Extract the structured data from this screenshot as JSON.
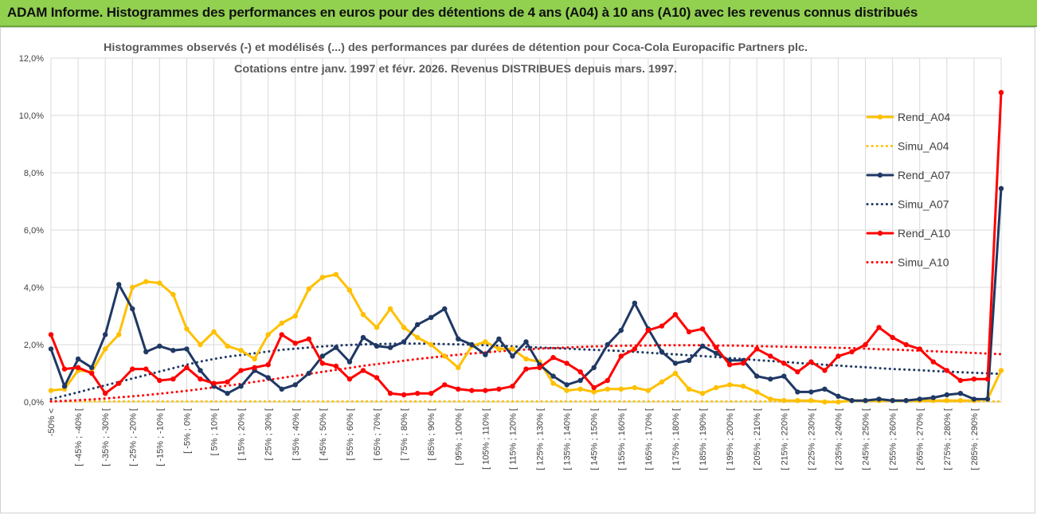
{
  "banner": {
    "title": "ADAM Informe. Histogrammes des performances en euros pour des détentions de 4 ans (A04) à 10 ans (A10) avec les revenus connus distribués"
  },
  "chart_data": {
    "type": "line",
    "title_line1": "Histogrammes observés (-) et modélisés (...) des performances par durées de détention pour Coca-Cola Europacific Partners plc.",
    "title_line2": "Cotations entre janv. 1997 et févr. 2026. Revenus DISTRIBUES depuis mars. 1997.",
    "ylim": [
      0,
      12
    ],
    "yticks": [
      "0,0%",
      "2,0%",
      "4,0%",
      "6,0%",
      "8,0%",
      "10,0%",
      "12,0%"
    ],
    "ytick_values": [
      0,
      2,
      4,
      6,
      8,
      10,
      12
    ],
    "xlabel": "",
    "ylabel": "",
    "legend_position": "right",
    "x_tick_labels": [
      "-50% <",
      "[ -45% ; -40% [",
      "[ -35% ; -30% [",
      "[ -25% ; -20% [",
      "[ -15% ; -10% [",
      "[ -5% ; 0% [",
      "[ 5% ; 10% [",
      "[ 15% ; 20% [",
      "[ 25% ; 30% [",
      "[ 35% ; 40% [",
      "[ 45% ; 50% [",
      "[ 55% ; 60% [",
      "[ 65% ; 70% [",
      "[ 75% ; 80% [",
      "[ 85% ; 90% [",
      "[ 95% ; 100% [",
      "[ 105% ; 110% [",
      "[ 115% ; 120% [",
      "[ 125% ; 130% [",
      "[ 135% ; 140% [",
      "[ 145% ; 150% [",
      "[ 155% ; 160% [",
      "[ 165% ; 170% [",
      "[ 175% ; 180% [",
      "[ 185% ; 190% [",
      "[ 195% ; 200% [",
      "[ 205% ; 210% [",
      "[ 215% ; 220% [",
      "[ 225% ; 230% [",
      "[ 235% ; 240% [",
      "[ 245% ; 250% [",
      "[ 255% ; 260% [",
      "[ 265% ; 270% [",
      "[ 275% ; 280% [",
      "[ 285% ; 290% ["
    ],
    "series": [
      {
        "name": "Rend_A04",
        "color": "#ffc000",
        "style": "solid",
        "markers": true,
        "values": [
          0.4,
          0.45,
          1.1,
          1.05,
          1.85,
          2.35,
          4.0,
          4.2,
          4.15,
          3.75,
          2.55,
          2.0,
          2.45,
          1.95,
          1.8,
          1.5,
          2.35,
          2.75,
          3.0,
          3.95,
          4.35,
          4.45,
          3.9,
          3.05,
          2.6,
          3.25,
          2.6,
          2.25,
          2.0,
          1.6,
          1.2,
          1.95,
          2.1,
          1.85,
          1.85,
          1.5,
          1.4,
          0.65,
          0.4,
          0.45,
          0.35,
          0.45,
          0.45,
          0.5,
          0.4,
          0.7,
          1.0,
          0.45,
          0.3,
          0.5,
          0.6,
          0.55,
          0.35,
          0.1,
          0.05,
          0.05,
          0.05,
          0.0,
          0.0,
          0.05,
          0.05,
          0.05,
          0.05,
          0.05,
          0.05,
          0.05,
          0.05,
          0.05,
          0.05,
          0.1,
          1.1
        ]
      },
      {
        "name": "Simu_A04",
        "color": "#ffc000",
        "style": "dotted",
        "markers": false,
        "values": [
          0.02,
          0.02,
          0.02,
          0.02,
          0.02,
          0.02,
          0.02,
          0.02,
          0.02,
          0.02,
          0.02,
          0.02,
          0.02,
          0.02,
          0.02,
          0.02,
          0.02,
          0.02,
          0.02,
          0.02,
          0.02,
          0.02,
          0.02,
          0.02,
          0.02,
          0.02,
          0.02,
          0.02,
          0.02,
          0.02,
          0.02,
          0.02,
          0.02,
          0.02,
          0.02,
          0.02,
          0.02,
          0.02,
          0.02,
          0.02,
          0.02,
          0.02,
          0.02,
          0.02,
          0.02,
          0.02,
          0.02,
          0.02,
          0.02,
          0.02,
          0.02,
          0.02,
          0.02,
          0.02,
          0.02,
          0.02,
          0.02,
          0.02,
          0.02,
          0.02,
          0.02,
          0.02,
          0.02,
          0.02,
          0.02,
          0.02,
          0.02,
          0.02,
          0.02,
          0.02,
          0.02
        ]
      },
      {
        "name": "Rend_A07",
        "color": "#1f3864",
        "style": "solid",
        "markers": true,
        "values": [
          1.85,
          0.55,
          1.5,
          1.2,
          2.35,
          4.1,
          3.25,
          1.75,
          1.95,
          1.8,
          1.85,
          1.1,
          0.55,
          0.3,
          0.55,
          1.1,
          0.85,
          0.45,
          0.6,
          1.0,
          1.6,
          1.9,
          1.4,
          2.25,
          1.95,
          1.9,
          2.1,
          2.7,
          2.95,
          3.25,
          2.2,
          2.0,
          1.65,
          2.2,
          1.6,
          2.1,
          1.3,
          0.9,
          0.6,
          0.75,
          1.2,
          2.0,
          2.5,
          3.45,
          2.55,
          1.75,
          1.35,
          1.45,
          1.95,
          1.7,
          1.45,
          1.45,
          0.9,
          0.8,
          0.9,
          0.35,
          0.35,
          0.45,
          0.2,
          0.05,
          0.05,
          0.1,
          0.05,
          0.05,
          0.1,
          0.15,
          0.25,
          0.3,
          0.1,
          0.1,
          7.45
        ]
      },
      {
        "name": "Simu_A07",
        "color": "#1f3864",
        "style": "dotted",
        "markers": false,
        "values": [
          0.1,
          0.22,
          0.34,
          0.46,
          0.58,
          0.7,
          0.82,
          0.94,
          1.06,
          1.18,
          1.3,
          1.41,
          1.5,
          1.58,
          1.64,
          1.7,
          1.76,
          1.82,
          1.86,
          1.9,
          1.94,
          1.97,
          1.99,
          2.01,
          2.02,
          2.03,
          2.04,
          2.04,
          2.03,
          2.02,
          2.01,
          2.0,
          1.98,
          1.96,
          1.94,
          1.92,
          1.9,
          1.88,
          1.86,
          1.84,
          1.82,
          1.8,
          1.78,
          1.75,
          1.72,
          1.69,
          1.66,
          1.63,
          1.6,
          1.57,
          1.53,
          1.5,
          1.46,
          1.43,
          1.4,
          1.36,
          1.33,
          1.3,
          1.27,
          1.24,
          1.21,
          1.18,
          1.15,
          1.13,
          1.11,
          1.08,
          1.06,
          1.04,
          1.02,
          1.0,
          0.98
        ]
      },
      {
        "name": "Rend_A10",
        "color": "#ff0000",
        "style": "solid",
        "markers": true,
        "values": [
          2.35,
          1.15,
          1.2,
          1.0,
          0.3,
          0.65,
          1.15,
          1.15,
          0.75,
          0.8,
          1.2,
          0.8,
          0.65,
          0.7,
          1.1,
          1.2,
          1.3,
          2.35,
          2.05,
          2.2,
          1.35,
          1.25,
          0.8,
          1.1,
          0.85,
          0.3,
          0.25,
          0.3,
          0.3,
          0.6,
          0.45,
          0.4,
          0.4,
          0.45,
          0.55,
          1.15,
          1.2,
          1.55,
          1.35,
          1.05,
          0.5,
          0.75,
          1.6,
          1.85,
          2.5,
          2.65,
          3.05,
          2.45,
          2.55,
          1.9,
          1.3,
          1.35,
          1.85,
          1.6,
          1.35,
          1.05,
          1.4,
          1.1,
          1.6,
          1.75,
          2.0,
          2.6,
          2.25,
          2.0,
          1.85,
          1.4,
          1.1,
          0.75,
          0.8,
          0.8,
          10.8
        ]
      },
      {
        "name": "Simu_A10",
        "color": "#ff0000",
        "style": "dotted",
        "markers": false,
        "values": [
          0.02,
          0.04,
          0.06,
          0.09,
          0.12,
          0.16,
          0.2,
          0.24,
          0.29,
          0.34,
          0.39,
          0.45,
          0.51,
          0.57,
          0.63,
          0.7,
          0.77,
          0.84,
          0.91,
          0.98,
          1.05,
          1.12,
          1.19,
          1.26,
          1.32,
          1.38,
          1.44,
          1.5,
          1.55,
          1.6,
          1.65,
          1.69,
          1.73,
          1.77,
          1.8,
          1.83,
          1.86,
          1.88,
          1.9,
          1.92,
          1.94,
          1.95,
          1.96,
          1.97,
          1.97,
          1.98,
          1.98,
          1.98,
          1.98,
          1.97,
          1.97,
          1.96,
          1.95,
          1.94,
          1.93,
          1.92,
          1.91,
          1.9,
          1.89,
          1.88,
          1.86,
          1.84,
          1.83,
          1.81,
          1.79,
          1.77,
          1.75,
          1.73,
          1.71,
          1.69,
          1.67
        ]
      }
    ]
  }
}
